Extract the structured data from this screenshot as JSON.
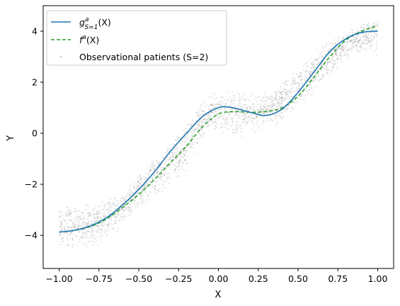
{
  "chart_data": {
    "type": "line",
    "xlabel": "X",
    "ylabel": "Y",
    "xlim": [
      -1.1,
      1.1
    ],
    "ylim": [
      -5.3,
      5.0
    ],
    "xticks": [
      -1.0,
      -0.75,
      -0.5,
      -0.25,
      0.0,
      0.25,
      0.5,
      0.75,
      1.0
    ],
    "xtick_labels": [
      "−1.00",
      "−0.75",
      "−0.50",
      "−0.25",
      "0.00",
      "0.25",
      "0.50",
      "0.75",
      "1.00"
    ],
    "yticks": [
      -4,
      -2,
      0,
      2,
      4
    ],
    "ytick_labels": [
      "−4",
      "−2",
      "0",
      "2",
      "4"
    ],
    "grid": false,
    "legend_position": "top-left",
    "series": [
      {
        "name": "g_{S=1}^a(X)",
        "style": "solid",
        "color": "#1f77b4",
        "x": [
          -1.0,
          -0.9,
          -0.8,
          -0.7,
          -0.6,
          -0.5,
          -0.4,
          -0.3,
          -0.2,
          -0.1,
          0.0,
          0.05,
          0.1,
          0.2,
          0.3,
          0.4,
          0.5,
          0.6,
          0.7,
          0.8,
          0.9,
          1.0
        ],
        "y": [
          -3.87,
          -3.8,
          -3.62,
          -3.3,
          -2.8,
          -2.2,
          -1.5,
          -0.7,
          0.0,
          0.65,
          1.0,
          1.03,
          0.98,
          0.82,
          0.7,
          0.95,
          1.6,
          2.4,
          3.2,
          3.7,
          3.95,
          4.0
        ]
      },
      {
        "name": "f^a(X)",
        "style": "dashed",
        "color": "#2ca02c",
        "x": [
          -1.0,
          -0.9,
          -0.8,
          -0.7,
          -0.6,
          -0.5,
          -0.4,
          -0.3,
          -0.2,
          -0.1,
          0.0,
          0.1,
          0.2,
          0.3,
          0.4,
          0.5,
          0.6,
          0.7,
          0.8,
          0.9,
          1.0
        ],
        "y": [
          -3.87,
          -3.8,
          -3.65,
          -3.35,
          -2.9,
          -2.4,
          -1.8,
          -1.15,
          -0.5,
          0.25,
          0.75,
          0.85,
          0.82,
          0.85,
          1.0,
          1.45,
          2.2,
          3.0,
          3.65,
          4.0,
          4.2
        ]
      }
    ],
    "scatter": {
      "name": "Observational patients (S=2)",
      "color": "#999999",
      "x_range": [
        -1.0,
        1.0
      ],
      "upper_band": {
        "x": [
          -1.0,
          -0.75,
          -0.6,
          -0.5,
          -0.35,
          -0.25,
          -0.1,
          0.0,
          0.2,
          0.35,
          0.5,
          0.65,
          0.8,
          0.9,
          1.0
        ],
        "y": [
          -2.7,
          -2.7,
          -2.3,
          -1.6,
          -0.6,
          0.1,
          1.3,
          1.8,
          1.6,
          1.7,
          2.6,
          3.5,
          4.0,
          4.35,
          4.55
        ]
      },
      "lower_band": {
        "x": [
          -1.0,
          -0.9,
          -0.75,
          -0.6,
          -0.5,
          -0.4,
          -0.3,
          -0.2,
          -0.1,
          0.0,
          0.1,
          0.25,
          0.4,
          0.5,
          0.6,
          0.75,
          0.85,
          1.0
        ],
        "y": [
          -4.6,
          -4.7,
          -4.5,
          -3.7,
          -3.0,
          -2.6,
          -2.2,
          -1.6,
          -0.3,
          0.0,
          -0.2,
          -0.05,
          0.4,
          0.9,
          1.5,
          2.5,
          3.1,
          2.9
        ]
      }
    }
  },
  "legend": {
    "items": [
      {
        "label": "g",
        "sup": "a",
        "sub": "S=1",
        "arg": "(X)",
        "style": "solid",
        "color": "#1f77b4"
      },
      {
        "label": "f",
        "sup": "a",
        "arg": "(X)",
        "style": "dashed",
        "color": "#2ca02c"
      },
      {
        "label": "Observational patients (S=2)",
        "style": "dot",
        "color": "#999999"
      }
    ]
  }
}
